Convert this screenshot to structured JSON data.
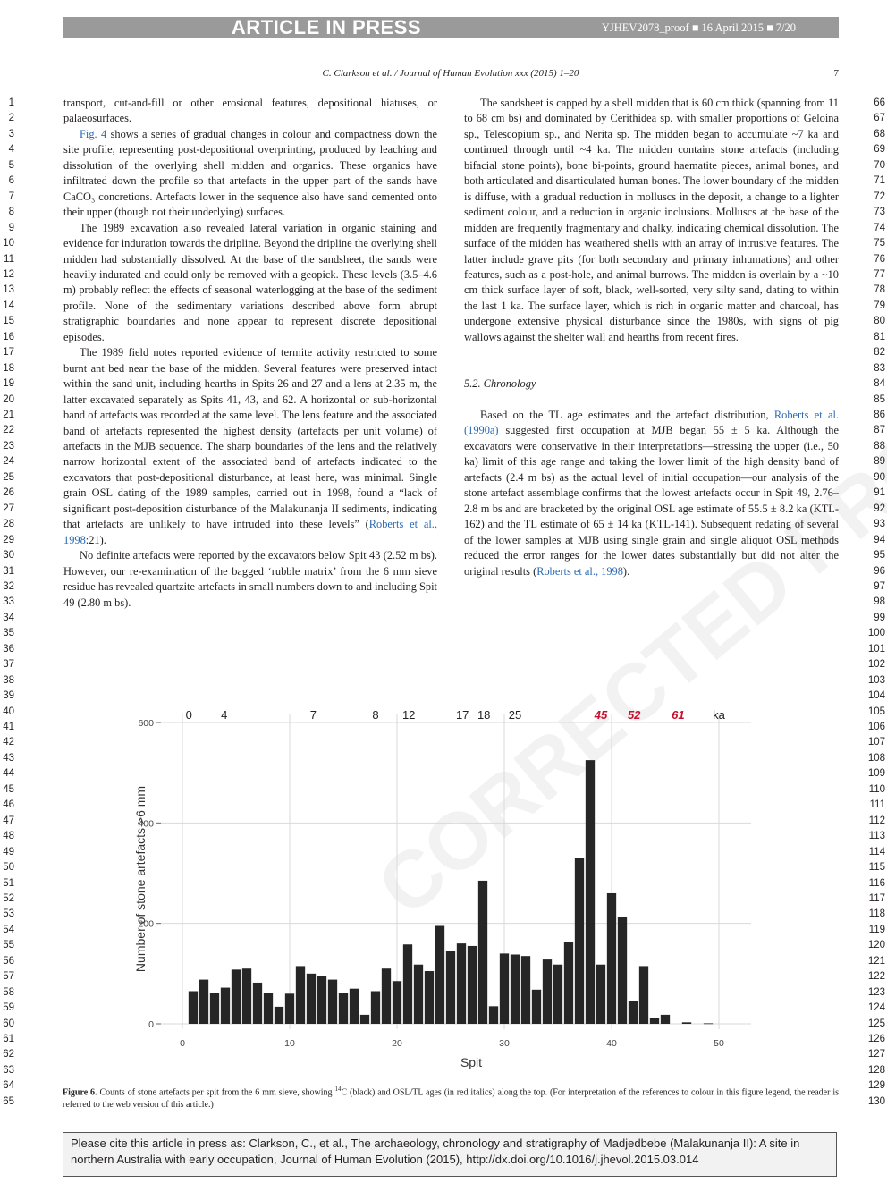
{
  "header": {
    "banner": "ARTICLE IN PRESS",
    "proof_line": "YJHEV2078_proof ■ 16 April 2015 ■ 7/20",
    "running_head": "C. Clarkson et al. / Journal of Human Evolution xxx (2015) 1–20",
    "page_number": "7"
  },
  "watermark": "CORRECTED PROOF",
  "left_column": {
    "p1": "transport, cut-and-fill or other erosional features, depositional hiatuses, or palaeosurfaces.",
    "p2_link": "Fig. 4",
    "p2": " shows a series of gradual changes in colour and compactness down the site profile, representing post-depositional overprinting, produced by leaching and dissolution of the overlying shell midden and organics. These organics have infiltrated down the profile so that artefacts in the upper part of the sands have CaCO₃ concretions. Artefacts lower in the sequence also have sand cemented onto their upper (though not their underlying) surfaces.",
    "p3": "The 1989 excavation also revealed lateral variation in organic staining and evidence for induration towards the dripline. Beyond the dripline the overlying shell midden had substantially dissolved. At the base of the sandsheet, the sands were heavily indurated and could only be removed with a geopick. These levels (3.5–4.6 m) probably reflect the effects of seasonal waterlogging at the base of the sediment profile. None of the sedimentary variations described above form abrupt stratigraphic boundaries and none appear to represent discrete depositional episodes.",
    "p4": "The 1989 field notes reported evidence of termite activity restricted to some burnt ant bed near the base of the midden. Several features were preserved intact within the sand unit, including hearths in Spits 26 and 27 and a lens at 2.35 m, the latter excavated separately as Spits 41, 43, and 62. A horizontal or sub-horizontal band of artefacts was recorded at the same level. The lens feature and the associated band of artefacts represented the highest density (artefacts per unit volume) of artefacts in the MJB sequence. The sharp boundaries of the lens and the relatively narrow horizontal extent of the associated band of artefacts indicated to the excavators that post-depositional disturbance, at least here, was minimal. Single grain OSL dating of the 1989 samples, carried out in 1998, found a “lack of significant post-deposition disturbance of the Malakunanja II sediments, indicating that artefacts are unlikely to have intruded into these levels” (",
    "p4_link": "Roberts et al., 1998",
    "p4_end": ":21).",
    "p5": "No definite artefacts were reported by the excavators below Spit 43 (2.52 m bs). However, our re-examination of the bagged ‘rubble matrix’ from the 6 mm sieve residue has revealed quartzite artefacts in small numbers down to and including Spit 49 (2.80 m bs)."
  },
  "right_column": {
    "p1": "The sandsheet is capped by a shell midden that is 60 cm thick (spanning from 11 to 68 cm bs) and dominated by Cerithidea sp. with smaller proportions of Geloina sp., Telescopium sp., and Nerita sp. The midden began to accumulate ~7 ka and continued through until ~4 ka. The midden contains stone artefacts (including bifacial stone points), bone bi-points, ground haematite pieces, animal bones, and both articulated and disarticulated human bones. The lower boundary of the midden is diffuse, with a gradual reduction in molluscs in the deposit, a change to a lighter sediment colour, and a reduction in organic inclusions. Molluscs at the base of the midden are frequently fragmentary and chalky, indicating chemical dissolution. The surface of the midden has weathered shells with an array of intrusive features. The latter include grave pits (for both secondary and primary inhumations) and other features, such as a post-hole, and animal burrows. The midden is overlain by a ~10 cm thick surface layer of soft, black, well-sorted, very silty sand, dating to within the last 1 ka. The surface layer, which is rich in organic matter and charcoal, has undergone extensive physical disturbance since the 1980s, with signs of pig wallows against the shelter wall and hearths from recent fires.",
    "section": "5.2. Chronology",
    "p2a": "Based on the TL age estimates and the artefact distribution, ",
    "p2_link1": "Roberts et al. (1990a)",
    "p2b": " suggested first occupation at MJB began 55 ± 5 ka. Although the excavators were conservative in their interpretations—stressing the upper (i.e., 50 ka) limit of this age range and taking the lower limit of the high density band of artefacts (2.4 m bs) as the actual level of initial occupation—our analysis of the stone artefact assemblage confirms that the lowest artefacts occur in Spit 49, 2.76–2.8 m bs and are bracketed by the original OSL age estimate of 55.5 ± 8.2 ka (KTL-162) and the TL estimate of 65 ± 14 ka (KTL-141). Subsequent redating of several of the lower samples at MJB using single grain and single aliquot OSL methods reduced the error ranges for the lower dates substantially but did not alter the original results (",
    "p2_link2": "Roberts et al., 1998",
    "p2c": ")."
  },
  "line_numbers": {
    "left_start": 1,
    "left_end": 65,
    "right_start": 66,
    "right_end": 130
  },
  "chart_data": {
    "type": "bar",
    "xlabel": "Spit",
    "ylabel": "Number of stone artefacts >6 mm",
    "xlim": [
      -2,
      53
    ],
    "ylim": [
      0,
      600
    ],
    "xticks": [
      "0",
      "10",
      "20",
      "30",
      "40",
      "50"
    ],
    "yticks": [
      "0",
      "200",
      "400",
      "600"
    ],
    "x": [
      1,
      2,
      3,
      4,
      5,
      6,
      7,
      8,
      9,
      10,
      11,
      12,
      13,
      14,
      15,
      16,
      17,
      18,
      19,
      20,
      21,
      22,
      23,
      24,
      25,
      26,
      27,
      28,
      29,
      30,
      31,
      32,
      33,
      34,
      35,
      36,
      37,
      38,
      39,
      40,
      41,
      42,
      43,
      44,
      45,
      46,
      47,
      48,
      49
    ],
    "values": [
      65,
      88,
      62,
      72,
      108,
      110,
      82,
      62,
      34,
      60,
      115,
      100,
      95,
      88,
      62,
      70,
      18,
      65,
      110,
      85,
      158,
      118,
      105,
      195,
      145,
      160,
      155,
      285,
      35,
      140,
      138,
      135,
      68,
      128,
      118,
      162,
      330,
      525,
      118,
      260,
      212,
      45,
      115,
      12,
      18,
      0,
      3,
      0,
      1
    ],
    "grid": true,
    "top_axis_unit": "ka",
    "top_labels_14c": [
      {
        "label": "0",
        "spit": 0.6
      },
      {
        "label": "4",
        "spit": 3.9
      },
      {
        "label": "7",
        "spit": 12.2
      },
      {
        "label": "8",
        "spit": 18.0
      },
      {
        "label": "12",
        "spit": 21.1
      },
      {
        "label": "17",
        "spit": 26.1
      },
      {
        "label": "18",
        "spit": 28.1
      },
      {
        "label": "25",
        "spit": 31.0
      }
    ],
    "top_labels_osl": [
      {
        "label": "45",
        "spit": 39.0
      },
      {
        "label": "52",
        "spit": 42.1
      },
      {
        "label": "61",
        "spit": 46.2
      }
    ],
    "colors": {
      "bars": "#262626",
      "osl": "#c8102e",
      "grid": "#d9d9d9"
    }
  },
  "caption": {
    "label": "Figure 6.",
    "text_a": " Counts of stone artefacts per spit from the 6 mm sieve, showing ",
    "iso": "14",
    "text_b": "C (black) and OSL/TL ages (in red italics) along the top. (For interpretation of the references to colour in this figure legend, the reader is referred to the web version of this article.)"
  },
  "citation": "Please cite this article in press as: Clarkson, C., et al., The archaeology, chronology and stratigraphy of Madjedbebe (Malakunanja II): A site in northern Australia with early occupation, Journal of Human Evolution (2015), http://dx.doi.org/10.1016/j.jhevol.2015.03.014"
}
